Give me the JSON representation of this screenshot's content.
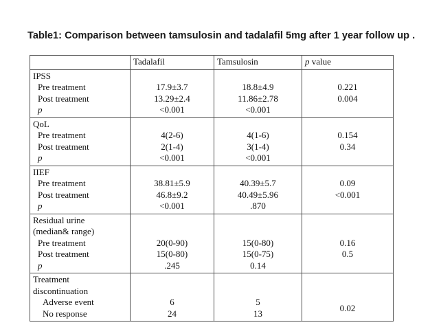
{
  "caption": "Table1: Comparison between tamsulosin and tadalafil 5mg after 1 year follow up .",
  "table": {
    "header": {
      "empty": "",
      "tadalafil": "Tadalafil",
      "tamsulosin": "Tamsulosin",
      "p_italic": "p",
      "p_rest": " value"
    },
    "sections": [
      {
        "label_lines": [
          {
            "t": "IPSS"
          },
          {
            "t": "Pre treatment",
            "indent": 1
          },
          {
            "t": "Post treatment",
            "indent": 1
          },
          {
            "t": "p",
            "indent": 1,
            "italic": true
          }
        ],
        "tadalafil_lines": [
          {
            "t": ""
          },
          {
            "t": "17.9±3.7"
          },
          {
            "t": "13.29±2.4"
          },
          {
            "t": "<0.001"
          }
        ],
        "tamsulosin_lines": [
          {
            "t": ""
          },
          {
            "t": "18.8±4.9"
          },
          {
            "t": "11.86±2.78"
          },
          {
            "t": "<0.001"
          }
        ],
        "p_lines": [
          {
            "t": ""
          },
          {
            "t": "0.221"
          },
          {
            "t": "0.004"
          },
          {
            "t": ""
          }
        ]
      },
      {
        "label_lines": [
          {
            "t": "QoL"
          },
          {
            "t": "Pre treatment",
            "indent": 1
          },
          {
            "t": "Post treatment",
            "indent": 1
          },
          {
            "t": "p",
            "indent": 1,
            "italic": true
          }
        ],
        "tadalafil_lines": [
          {
            "t": ""
          },
          {
            "t": "4(2-6)"
          },
          {
            "t": "2(1-4)"
          },
          {
            "t": "<0.001"
          }
        ],
        "tamsulosin_lines": [
          {
            "t": ""
          },
          {
            "t": "4(1-6)"
          },
          {
            "t": "3(1-4)"
          },
          {
            "t": "<0.001"
          }
        ],
        "p_lines": [
          {
            "t": ""
          },
          {
            "t": "0.154"
          },
          {
            "t": "0.34"
          },
          {
            "t": ""
          }
        ]
      },
      {
        "label_lines": [
          {
            "t": "IIEF"
          },
          {
            "t": "Pre treatment",
            "indent": 1
          },
          {
            "t": "Post treatment",
            "indent": 1
          },
          {
            "t": "p",
            "indent": 1,
            "italic": true
          }
        ],
        "tadalafil_lines": [
          {
            "t": ""
          },
          {
            "t": "38.81±5.9"
          },
          {
            "t": "46.8±9.2"
          },
          {
            "t": "<0.001"
          }
        ],
        "tamsulosin_lines": [
          {
            "t": ""
          },
          {
            "t": "40.39±5.7"
          },
          {
            "t": "40.49±5.96"
          },
          {
            "t": ".870"
          }
        ],
        "p_lines": [
          {
            "t": ""
          },
          {
            "t": "0.09"
          },
          {
            "t": "<0.001"
          },
          {
            "t": ""
          }
        ]
      },
      {
        "label_lines": [
          {
            "t": "Residual urine"
          },
          {
            "t": "(median& range)"
          },
          {
            "t": "Pre treatment",
            "indent": 1
          },
          {
            "t": "Post treatment",
            "indent": 1
          },
          {
            "t": "p",
            "indent": 1,
            "italic": true
          }
        ],
        "tadalafil_lines": [
          {
            "t": ""
          },
          {
            "t": ""
          },
          {
            "t": "20(0-90)"
          },
          {
            "t": "15(0-80)"
          },
          {
            "t": ".245"
          }
        ],
        "tamsulosin_lines": [
          {
            "t": ""
          },
          {
            "t": ""
          },
          {
            "t": "15(0-80)"
          },
          {
            "t": "15(0-75)"
          },
          {
            "t": "0.14"
          }
        ],
        "p_lines": [
          {
            "t": ""
          },
          {
            "t": ""
          },
          {
            "t": "0.16"
          },
          {
            "t": "0.5"
          },
          {
            "t": ""
          }
        ]
      },
      {
        "label_lines": [
          {
            "t": "Treatment"
          },
          {
            "t": "discontinuation"
          },
          {
            "t": "Adverse event",
            "indent": 2
          },
          {
            "t": "No response",
            "indent": 2
          }
        ],
        "tadalafil_lines": [
          {
            "t": ""
          },
          {
            "t": ""
          },
          {
            "t": "6"
          },
          {
            "t": "24"
          }
        ],
        "tamsulosin_lines": [
          {
            "t": ""
          },
          {
            "t": ""
          },
          {
            "t": "5"
          },
          {
            "t": "13"
          }
        ],
        "p_lines": [
          {
            "t": ""
          },
          {
            "t": ""
          },
          {
            "t": "0.02",
            "span": 2
          }
        ]
      }
    ]
  }
}
